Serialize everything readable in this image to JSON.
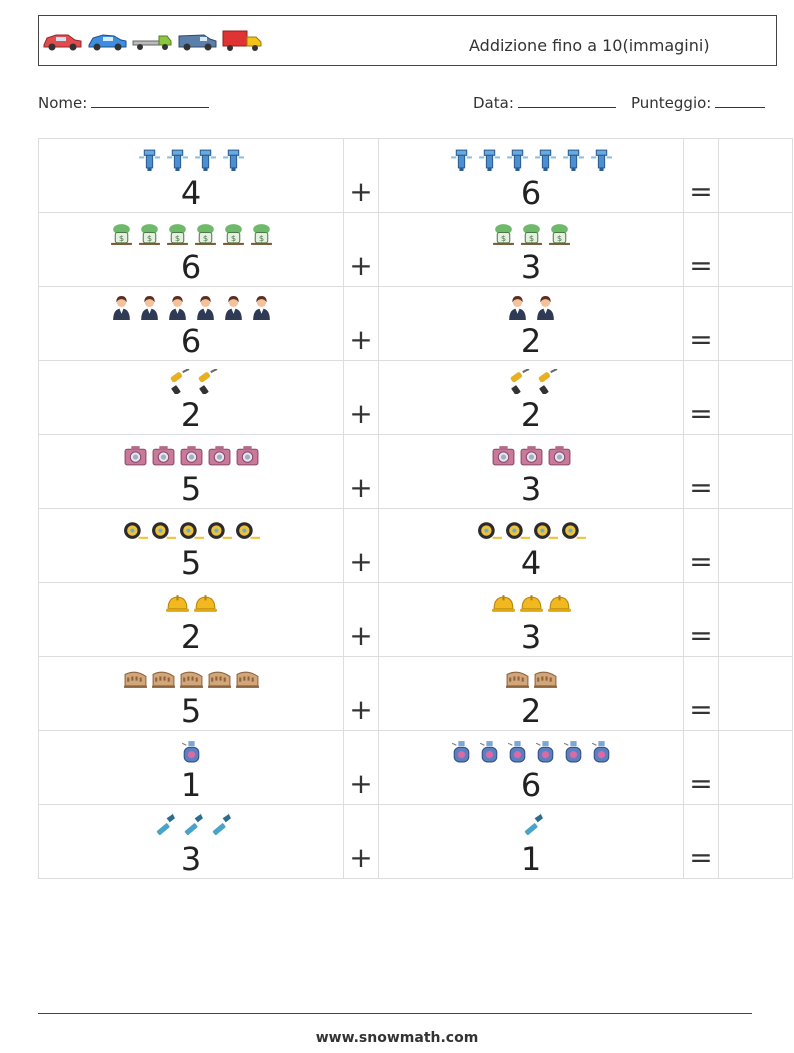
{
  "header": {
    "title": "Addizione fino a 10(immagini)",
    "vehicles": [
      "red-car-icon",
      "blue-car-icon",
      "flatbed-truck-icon",
      "van-icon",
      "red-delivery-truck-icon"
    ]
  },
  "meta": {
    "name_label": "Nome:",
    "date_label": "Data:",
    "score_label": "Punteggio:"
  },
  "operators": {
    "plus": "+",
    "equals": "="
  },
  "rows": [
    {
      "left": {
        "icon": "robot-icon",
        "count": "4"
      },
      "right": {
        "icon": "robot-icon",
        "count": "6"
      }
    },
    {
      "left": {
        "icon": "money-plant-icon",
        "count": "6"
      },
      "right": {
        "icon": "money-plant-icon",
        "count": "3"
      }
    },
    {
      "left": {
        "icon": "businesswoman-icon",
        "count": "6"
      },
      "right": {
        "icon": "businesswoman-icon",
        "count": "2"
      }
    },
    {
      "left": {
        "icon": "power-drill-icon",
        "count": "2"
      },
      "right": {
        "icon": "power-drill-icon",
        "count": "2"
      }
    },
    {
      "left": {
        "icon": "camera-icon",
        "count": "5"
      },
      "right": {
        "icon": "camera-icon",
        "count": "3"
      }
    },
    {
      "left": {
        "icon": "measuring-tape-icon",
        "count": "5"
      },
      "right": {
        "icon": "measuring-tape-icon",
        "count": "4"
      }
    },
    {
      "left": {
        "icon": "hard-hat-icon",
        "count": "2"
      },
      "right": {
        "icon": "hard-hat-icon",
        "count": "3"
      }
    },
    {
      "left": {
        "icon": "colosseum-icon",
        "count": "5"
      },
      "right": {
        "icon": "colosseum-icon",
        "count": "2"
      }
    },
    {
      "left": {
        "icon": "perfume-bottle-icon",
        "count": "1"
      },
      "right": {
        "icon": "perfume-bottle-icon",
        "count": "6"
      }
    },
    {
      "left": {
        "icon": "flashlight-icon",
        "count": "3"
      },
      "right": {
        "icon": "flashlight-icon",
        "count": "1"
      }
    }
  ],
  "footer": {
    "url": "www.snowmath.com"
  }
}
